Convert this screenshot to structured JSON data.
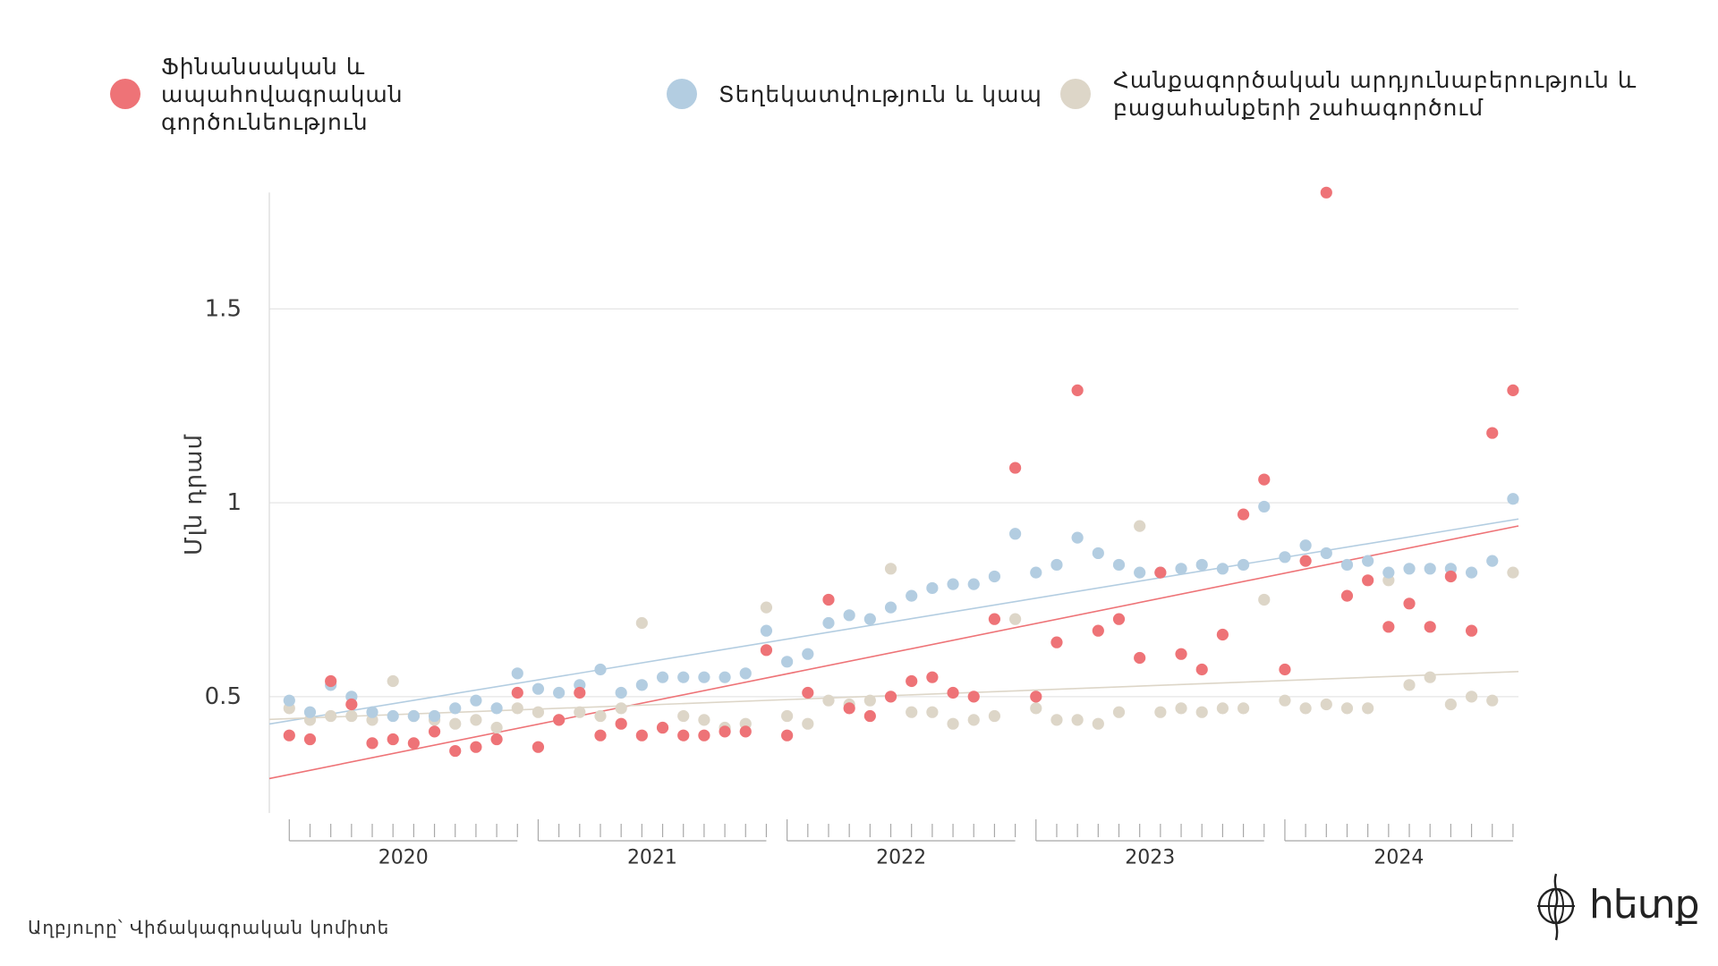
{
  "chart_data": {
    "type": "scatter",
    "x": [
      "2020-01",
      "2020-02",
      "2020-03",
      "2020-04",
      "2020-05",
      "2020-06",
      "2020-07",
      "2020-08",
      "2020-09",
      "2020-10",
      "2020-11",
      "2020-12",
      "2021-01",
      "2021-02",
      "2021-03",
      "2021-04",
      "2021-05",
      "2021-06",
      "2021-07",
      "2021-08",
      "2021-09",
      "2021-10",
      "2021-11",
      "2021-12",
      "2022-01",
      "2022-02",
      "2022-03",
      "2022-04",
      "2022-05",
      "2022-06",
      "2022-07",
      "2022-08",
      "2022-09",
      "2022-10",
      "2022-11",
      "2022-12",
      "2023-01",
      "2023-02",
      "2023-03",
      "2023-04",
      "2023-05",
      "2023-06",
      "2023-07",
      "2023-08",
      "2023-09",
      "2023-10",
      "2023-11",
      "2023-12",
      "2024-01",
      "2024-02",
      "2024-03",
      "2024-04",
      "2024-05",
      "2024-06",
      "2024-07",
      "2024-08",
      "2024-09",
      "2024-10",
      "2024-11",
      "2024-12"
    ],
    "x_ticklabels": [
      "2020",
      "2021",
      "2022",
      "2023",
      "2024"
    ],
    "ylabel": "Մլն դրամ",
    "yticks": [
      0.5,
      1,
      1.5
    ],
    "ytick_labels": [
      "0.5",
      "1",
      "1.5"
    ],
    "ylim": [
      0.2,
      1.8
    ],
    "grid": "horizontal",
    "legend_position": "top",
    "trendline": "linear",
    "series": [
      {
        "name": "Ֆինանսական և ապահովագրական գործունեություն",
        "color": "#EE7377",
        "values": [
          0.4,
          0.39,
          0.54,
          0.48,
          0.38,
          0.39,
          0.38,
          0.41,
          0.36,
          0.37,
          0.39,
          0.51,
          0.37,
          0.44,
          0.51,
          0.4,
          0.43,
          0.4,
          0.42,
          0.4,
          0.4,
          0.41,
          0.41,
          0.62,
          0.4,
          0.51,
          0.75,
          0.47,
          0.45,
          0.5,
          0.54,
          0.55,
          0.51,
          0.5,
          0.7,
          1.09,
          0.5,
          0.64,
          1.29,
          0.67,
          0.7,
          0.6,
          0.82,
          0.61,
          0.57,
          0.66,
          0.97,
          1.06,
          0.57,
          0.85,
          1.8,
          0.76,
          0.8,
          0.68,
          0.74,
          0.68,
          0.81,
          0.67,
          1.18,
          1.29
        ]
      },
      {
        "name": "Տեղեկատվություն և կապ",
        "color": "#B3CDE1",
        "values": [
          0.49,
          0.46,
          0.53,
          0.5,
          0.46,
          0.45,
          0.45,
          0.45,
          0.47,
          0.49,
          0.47,
          0.56,
          0.52,
          0.51,
          0.53,
          0.57,
          0.51,
          0.53,
          0.55,
          0.55,
          0.55,
          0.55,
          0.56,
          0.67,
          0.59,
          0.61,
          0.69,
          0.71,
          0.7,
          0.73,
          0.76,
          0.78,
          0.79,
          0.79,
          0.81,
          0.92,
          0.82,
          0.84,
          0.91,
          0.87,
          0.84,
          0.82,
          0.82,
          0.83,
          0.84,
          0.83,
          0.84,
          0.99,
          0.86,
          0.89,
          0.87,
          0.84,
          0.85,
          0.82,
          0.83,
          0.83,
          0.83,
          0.82,
          0.85,
          1.01
        ]
      },
      {
        "name": "Հանքագործական արդյունաբերություն և բացահանքերի շահագործում",
        "color": "#DDD6C8",
        "values": [
          0.47,
          0.44,
          0.45,
          0.45,
          0.44,
          0.54,
          0.45,
          0.44,
          0.43,
          0.44,
          0.42,
          0.47,
          0.46,
          0.44,
          0.46,
          0.45,
          0.47,
          0.69,
          0.42,
          0.45,
          0.44,
          0.42,
          0.43,
          0.73,
          0.45,
          0.43,
          0.49,
          0.48,
          0.49,
          0.83,
          0.46,
          0.46,
          0.43,
          0.44,
          0.45,
          0.7,
          0.47,
          0.44,
          0.44,
          0.43,
          0.46,
          0.94,
          0.46,
          0.47,
          0.46,
          0.47,
          0.47,
          0.75,
          0.49,
          0.47,
          0.48,
          0.47,
          0.47,
          0.8,
          0.53,
          0.55,
          0.48,
          0.5,
          0.49,
          0.82
        ]
      }
    ]
  },
  "source": "Աղբյուրը՝ Վիճակագրական կոմիտե",
  "logo": {
    "text": "հետք",
    "icon": "globe-icon"
  }
}
